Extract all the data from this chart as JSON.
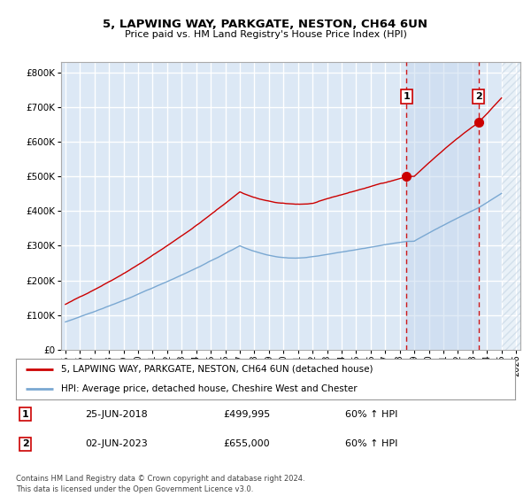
{
  "title": "5, LAPWING WAY, PARKGATE, NESTON, CH64 6UN",
  "subtitle": "Price paid vs. HM Land Registry's House Price Index (HPI)",
  "xlim_start": 1994.7,
  "xlim_end": 2026.3,
  "ylim": [
    0,
    830000
  ],
  "background_color": "#ffffff",
  "plot_bg_color": "#dce8f5",
  "grid_color": "#ffffff",
  "red_line_color": "#cc0000",
  "blue_line_color": "#7aa8d2",
  "vline_color": "#cc0000",
  "shade_color": "#dce8f5",
  "hatch_color": "#c8d8e8",
  "marker1_date": 2018.47,
  "marker2_date": 2023.42,
  "marker1_price": 499995,
  "marker2_price": 655000,
  "legend1": "5, LAPWING WAY, PARKGATE, NESTON, CH64 6UN (detached house)",
  "legend2": "HPI: Average price, detached house, Cheshire West and Chester",
  "table_row1_num": "1",
  "table_row1_date": "25-JUN-2018",
  "table_row1_price": "£499,995",
  "table_row1_hpi": "60% ↑ HPI",
  "table_row2_num": "2",
  "table_row2_date": "02-JUN-2023",
  "table_row2_price": "£655,000",
  "table_row2_hpi": "60% ↑ HPI",
  "footer": "Contains HM Land Registry data © Crown copyright and database right 2024.\nThis data is licensed under the Open Government Licence v3.0.",
  "tick_years": [
    1995,
    1996,
    1997,
    1998,
    1999,
    2000,
    2001,
    2002,
    2003,
    2004,
    2005,
    2006,
    2007,
    2008,
    2009,
    2010,
    2011,
    2012,
    2013,
    2014,
    2015,
    2016,
    2017,
    2018,
    2019,
    2020,
    2021,
    2022,
    2023,
    2024,
    2025,
    2026
  ],
  "hatch_start": 2025.0
}
